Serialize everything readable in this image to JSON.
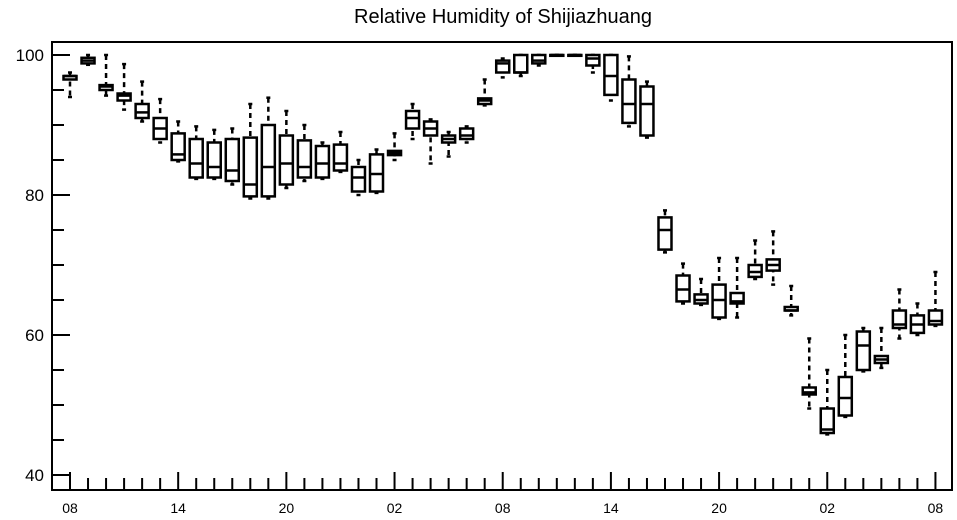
{
  "chart_data": {
    "type": "boxplot",
    "title": "Relative Humidity of Shijiazhuang",
    "xlabel": "",
    "ylabel": "",
    "ylim": [
      40,
      100
    ],
    "yticks": [
      40,
      60,
      80,
      100
    ],
    "x_tick_labels": [
      {
        "index": 0,
        "label": "08"
      },
      {
        "index": 6,
        "label": "14"
      },
      {
        "index": 12,
        "label": "20"
      },
      {
        "index": 18,
        "label": "02"
      },
      {
        "index": 24,
        "label": "08"
      },
      {
        "index": 30,
        "label": "14"
      },
      {
        "index": 36,
        "label": "20"
      },
      {
        "index": 42,
        "label": "02"
      },
      {
        "index": 48,
        "label": "08"
      }
    ],
    "colors": {
      "box": "#000000",
      "background": "#ffffff"
    },
    "grid": false,
    "boxes": [
      {
        "x": 0,
        "q1": 96.5,
        "median": 97.0,
        "q3": 97.0,
        "whisker_low": 94.0,
        "whisker_high": 97.5
      },
      {
        "x": 1,
        "q1": 98.8,
        "median": 99.2,
        "q3": 99.6,
        "whisker_low": 98.6,
        "whisker_high": 100.0
      },
      {
        "x": 2,
        "q1": 95.0,
        "median": 95.5,
        "q3": 95.7,
        "whisker_low": 94.2,
        "whisker_high": 100.0
      },
      {
        "x": 3,
        "q1": 93.5,
        "median": 94.2,
        "q3": 94.5,
        "whisker_low": 92.2,
        "whisker_high": 98.7
      },
      {
        "x": 4,
        "q1": 91.0,
        "median": 91.8,
        "q3": 93.0,
        "whisker_low": 90.5,
        "whisker_high": 96.2
      },
      {
        "x": 5,
        "q1": 88.0,
        "median": 89.5,
        "q3": 91.0,
        "whisker_low": 87.5,
        "whisker_high": 93.7
      },
      {
        "x": 6,
        "q1": 85.0,
        "median": 85.8,
        "q3": 88.8,
        "whisker_low": 84.8,
        "whisker_high": 90.5
      },
      {
        "x": 7,
        "q1": 82.5,
        "median": 84.5,
        "q3": 88.0,
        "whisker_low": 82.3,
        "whisker_high": 89.8
      },
      {
        "x": 8,
        "q1": 82.5,
        "median": 84.0,
        "q3": 87.5,
        "whisker_low": 82.3,
        "whisker_high": 89.3
      },
      {
        "x": 9,
        "q1": 82.0,
        "median": 83.5,
        "q3": 88.0,
        "whisker_low": 81.5,
        "whisker_high": 89.5
      },
      {
        "x": 10,
        "q1": 79.8,
        "median": 81.5,
        "q3": 88.2,
        "whisker_low": 79.5,
        "whisker_high": 93.0
      },
      {
        "x": 11,
        "q1": 79.8,
        "median": 84.0,
        "q3": 90.0,
        "whisker_low": 79.5,
        "whisker_high": 93.9
      },
      {
        "x": 12,
        "q1": 81.5,
        "median": 84.5,
        "q3": 88.5,
        "whisker_low": 81.0,
        "whisker_high": 92.0
      },
      {
        "x": 13,
        "q1": 82.5,
        "median": 84.0,
        "q3": 87.8,
        "whisker_low": 82.0,
        "whisker_high": 90.0
      },
      {
        "x": 14,
        "q1": 82.5,
        "median": 84.5,
        "q3": 87.0,
        "whisker_low": 82.3,
        "whisker_high": 87.5
      },
      {
        "x": 15,
        "q1": 83.5,
        "median": 84.5,
        "q3": 87.2,
        "whisker_low": 83.3,
        "whisker_high": 89.0
      },
      {
        "x": 16,
        "q1": 80.5,
        "median": 82.5,
        "q3": 84.0,
        "whisker_low": 80.0,
        "whisker_high": 85.0
      },
      {
        "x": 17,
        "q1": 80.5,
        "median": 83.0,
        "q3": 85.8,
        "whisker_low": 80.3,
        "whisker_high": 86.5
      },
      {
        "x": 18,
        "q1": 85.7,
        "median": 86.0,
        "q3": 86.3,
        "whisker_low": 85.0,
        "whisker_high": 88.8
      },
      {
        "x": 19,
        "q1": 89.5,
        "median": 91.0,
        "q3": 92.0,
        "whisker_low": 88.0,
        "whisker_high": 93.0
      },
      {
        "x": 20,
        "q1": 88.5,
        "median": 89.5,
        "q3": 90.5,
        "whisker_low": 84.5,
        "whisker_high": 90.8
      },
      {
        "x": 21,
        "q1": 87.5,
        "median": 88.0,
        "q3": 88.5,
        "whisker_low": 85.5,
        "whisker_high": 89.0
      },
      {
        "x": 22,
        "q1": 88.0,
        "median": 88.5,
        "q3": 89.5,
        "whisker_low": 87.5,
        "whisker_high": 89.8
      },
      {
        "x": 23,
        "q1": 93.0,
        "median": 93.5,
        "q3": 93.8,
        "whisker_low": 92.8,
        "whisker_high": 96.5
      },
      {
        "x": 24,
        "q1": 97.5,
        "median": 98.8,
        "q3": 99.2,
        "whisker_low": 96.8,
        "whisker_high": 99.5
      },
      {
        "x": 25,
        "q1": 97.5,
        "median": 97.5,
        "q3": 100.0,
        "whisker_low": 97.0,
        "whisker_high": 100.0
      },
      {
        "x": 26,
        "q1": 98.8,
        "median": 99.2,
        "q3": 100.0,
        "whisker_low": 98.5,
        "whisker_high": 100.0
      },
      {
        "x": 27,
        "q1": 100.0,
        "median": 100.0,
        "q3": 100.0,
        "whisker_low": 100.0,
        "whisker_high": 100.0
      },
      {
        "x": 28,
        "q1": 100.0,
        "median": 100.0,
        "q3": 100.0,
        "whisker_low": 100.0,
        "whisker_high": 100.0
      },
      {
        "x": 29,
        "q1": 98.5,
        "median": 99.5,
        "q3": 100.0,
        "whisker_low": 97.5,
        "whisker_high": 100.0
      },
      {
        "x": 30,
        "q1": 94.3,
        "median": 97.0,
        "q3": 100.0,
        "whisker_low": 93.5,
        "whisker_high": 100.0
      },
      {
        "x": 31,
        "q1": 90.3,
        "median": 93.0,
        "q3": 96.5,
        "whisker_low": 89.8,
        "whisker_high": 99.8
      },
      {
        "x": 32,
        "q1": 88.5,
        "median": 93.0,
        "q3": 95.5,
        "whisker_low": 88.2,
        "whisker_high": 96.2
      },
      {
        "x": 33,
        "q1": 72.2,
        "median": 75.0,
        "q3": 76.8,
        "whisker_low": 71.8,
        "whisker_high": 77.8
      },
      {
        "x": 34,
        "q1": 64.8,
        "median": 66.5,
        "q3": 68.5,
        "whisker_low": 64.5,
        "whisker_high": 70.2
      },
      {
        "x": 35,
        "q1": 64.5,
        "median": 65.0,
        "q3": 65.8,
        "whisker_low": 64.3,
        "whisker_high": 68.0
      },
      {
        "x": 36,
        "q1": 62.5,
        "median": 65.0,
        "q3": 67.2,
        "whisker_low": 62.3,
        "whisker_high": 71.0
      },
      {
        "x": 37,
        "q1": 64.5,
        "median": 64.8,
        "q3": 66.0,
        "whisker_low": 62.5,
        "whisker_high": 71.0
      },
      {
        "x": 38,
        "q1": 68.3,
        "median": 69.0,
        "q3": 70.0,
        "whisker_low": 68.0,
        "whisker_high": 73.5
      },
      {
        "x": 39,
        "q1": 69.2,
        "median": 70.0,
        "q3": 70.8,
        "whisker_low": 67.2,
        "whisker_high": 74.8
      },
      {
        "x": 40,
        "q1": 63.5,
        "median": 63.5,
        "q3": 64.0,
        "whisker_low": 62.8,
        "whisker_high": 67.0
      },
      {
        "x": 41,
        "q1": 51.5,
        "median": 51.8,
        "q3": 52.5,
        "whisker_low": 49.5,
        "whisker_high": 59.5
      },
      {
        "x": 42,
        "q1": 46.0,
        "median": 46.5,
        "q3": 49.5,
        "whisker_low": 45.8,
        "whisker_high": 55.0
      },
      {
        "x": 43,
        "q1": 48.5,
        "median": 51.0,
        "q3": 54.0,
        "whisker_low": 48.3,
        "whisker_high": 60.0
      },
      {
        "x": 44,
        "q1": 55.0,
        "median": 58.5,
        "q3": 60.5,
        "whisker_low": 54.8,
        "whisker_high": 61.0
      },
      {
        "x": 45,
        "q1": 56.0,
        "median": 56.5,
        "q3": 57.0,
        "whisker_low": 55.3,
        "whisker_high": 61.0
      },
      {
        "x": 46,
        "q1": 61.0,
        "median": 61.5,
        "q3": 63.5,
        "whisker_low": 59.5,
        "whisker_high": 66.5
      },
      {
        "x": 47,
        "q1": 60.3,
        "median": 61.5,
        "q3": 62.8,
        "whisker_low": 60.0,
        "whisker_high": 64.5
      },
      {
        "x": 48,
        "q1": 61.5,
        "median": 62.0,
        "q3": 63.5,
        "whisker_low": 61.3,
        "whisker_high": 69.0
      }
    ]
  }
}
